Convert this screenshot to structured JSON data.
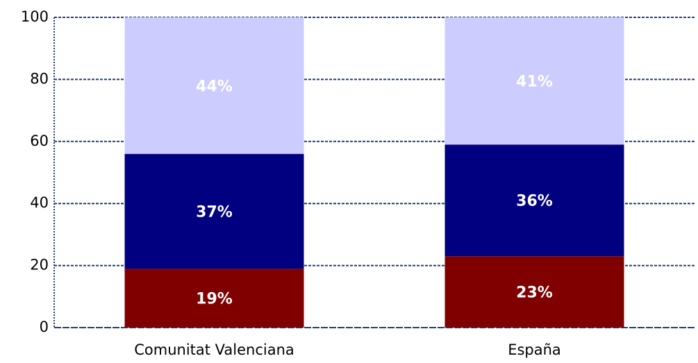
{
  "chart_data": {
    "type": "stacked_bar",
    "categories": [
      "Comunitat Valenciana",
      "España"
    ],
    "series": [
      {
        "color": "#800000",
        "values": [
          19,
          23
        ],
        "value_labels": [
          "19%",
          "23%"
        ]
      },
      {
        "color": "#000080",
        "values": [
          37,
          36
        ],
        "value_labels": [
          "37%",
          "36%"
        ]
      },
      {
        "color": "#ccccff",
        "values": [
          44,
          41
        ],
        "value_labels": [
          "44%",
          "41%"
        ]
      }
    ],
    "ylim": [
      0,
      100
    ],
    "yticks": [
      0,
      20,
      40,
      60,
      80,
      100
    ],
    "grid": true
  }
}
